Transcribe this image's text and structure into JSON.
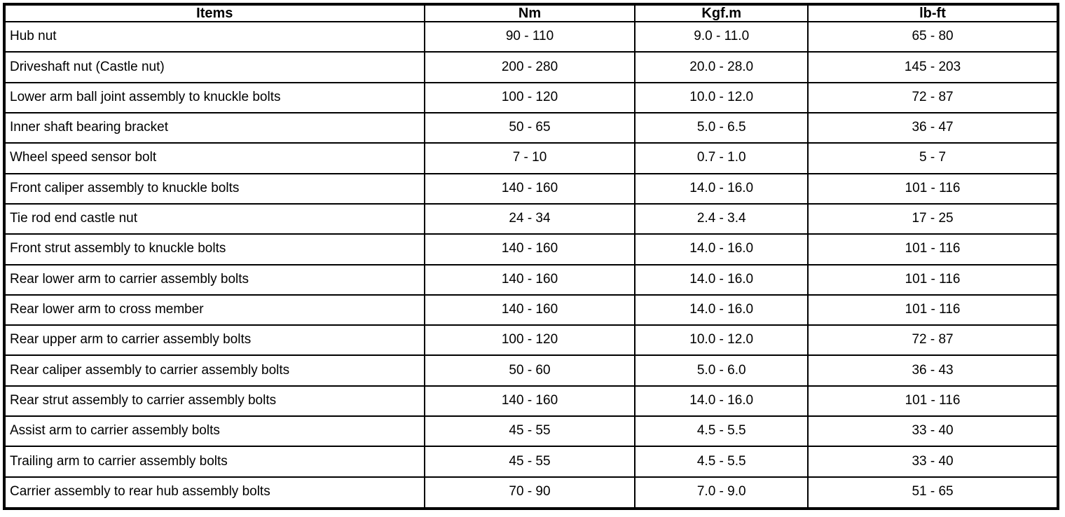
{
  "table": {
    "columns": [
      {
        "key": "item",
        "label": "Items"
      },
      {
        "key": "nm",
        "label": "Nm"
      },
      {
        "key": "kgfm",
        "label": "Kgf.m"
      },
      {
        "key": "lbft",
        "label": "lb-ft"
      }
    ],
    "rows": [
      {
        "item": "Hub nut",
        "nm": "90 - 110",
        "kgfm": "9.0 - 11.0",
        "lbft": "65 - 80"
      },
      {
        "item": "Driveshaft nut (Castle nut)",
        "nm": "200 - 280",
        "kgfm": "20.0 - 28.0",
        "lbft": "145 - 203"
      },
      {
        "item": "Lower arm ball joint assembly to knuckle bolts",
        "nm": "100 - 120",
        "kgfm": "10.0 - 12.0",
        "lbft": "72 - 87"
      },
      {
        "item": "Inner shaft bearing bracket",
        "nm": "50 - 65",
        "kgfm": "5.0 - 6.5",
        "lbft": "36 - 47"
      },
      {
        "item": "Wheel speed sensor bolt",
        "nm": "7 - 10",
        "kgfm": "0.7 - 1.0",
        "lbft": "5 - 7"
      },
      {
        "item": "Front caliper assembly to knuckle bolts",
        "nm": "140 - 160",
        "kgfm": "14.0 - 16.0",
        "lbft": "101 - 116"
      },
      {
        "item": "Tie rod end castle nut",
        "nm": "24 - 34",
        "kgfm": "2.4 - 3.4",
        "lbft": "17 - 25"
      },
      {
        "item": "Front strut assembly to knuckle bolts",
        "nm": "140 - 160",
        "kgfm": "14.0 - 16.0",
        "lbft": "101 - 116"
      },
      {
        "item": "Rear lower arm to carrier assembly bolts",
        "nm": "140 - 160",
        "kgfm": "14.0 - 16.0",
        "lbft": "101 - 116"
      },
      {
        "item": "Rear lower arm to cross member",
        "nm": "140 - 160",
        "kgfm": "14.0 - 16.0",
        "lbft": "101 - 116"
      },
      {
        "item": "Rear upper arm to carrier assembly bolts",
        "nm": "100 - 120",
        "kgfm": "10.0 - 12.0",
        "lbft": "72 - 87"
      },
      {
        "item": "Rear caliper assembly to carrier assembly bolts",
        "nm": "50 - 60",
        "kgfm": "5.0 - 6.0",
        "lbft": "36 - 43"
      },
      {
        "item": "Rear strut assembly to carrier assembly bolts",
        "nm": "140 - 160",
        "kgfm": "14.0 - 16.0",
        "lbft": "101 - 116"
      },
      {
        "item": "Assist arm to carrier assembly bolts",
        "nm": "45 - 55",
        "kgfm": "4.5 - 5.5",
        "lbft": "33 - 40"
      },
      {
        "item": "Trailing arm to carrier assembly bolts",
        "nm": "45 - 55",
        "kgfm": "4.5 - 5.5",
        "lbft": "33 - 40"
      },
      {
        "item": "Carrier assembly to rear hub assembly bolts",
        "nm": "70 - 90",
        "kgfm": "7.0 - 9.0",
        "lbft": "51 - 65"
      }
    ],
    "colors": {
      "border": "#000000",
      "background": "#ffffff",
      "text": "#000000"
    }
  }
}
